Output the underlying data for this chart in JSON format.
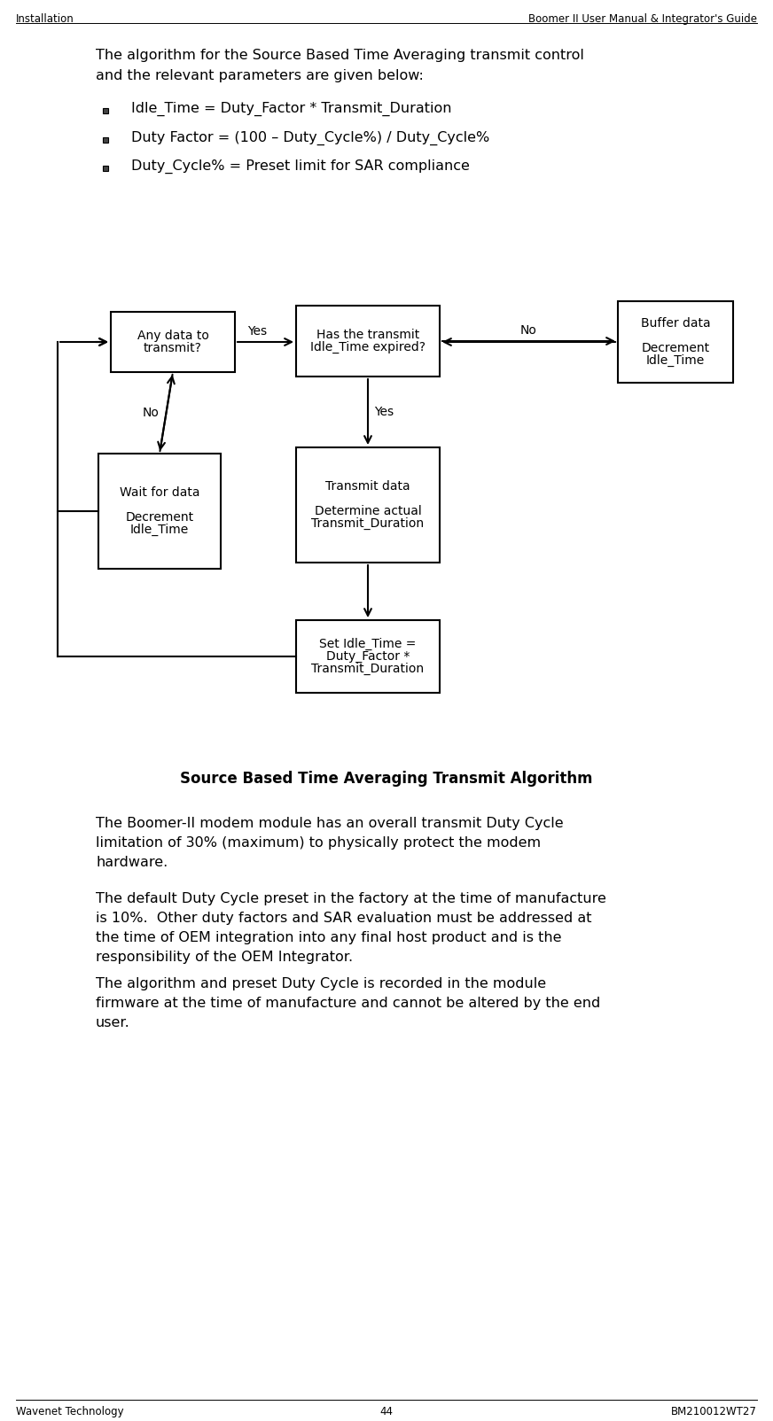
{
  "header_left": "Installation",
  "header_right": "Boomer II User Manual & Integrator's Guide",
  "footer_left": "Wavenet Technology",
  "footer_center": "44",
  "footer_right": "BM210012WT27",
  "intro_line1": "The algorithm for the Source Based Time Averaging transmit control",
  "intro_line2": "and the relevant parameters are given below:",
  "bullet1": "Idle_Time = Duty_Factor * Transmit_Duration",
  "bullet2": "Duty Factor = (100 – Duty_Cycle%) / Duty_Cycle%",
  "bullet3": "Duty_Cycle% = Preset limit for SAR compliance",
  "diagram_title": "Source Based Time Averaging Transmit Algorithm",
  "para1": [
    "The Boomer-II modem module has an overall transmit Duty Cycle",
    "limitation of 30% (maximum) to physically protect the modem",
    "hardware."
  ],
  "para2": [
    "The default Duty Cycle preset in the factory at the time of manufacture",
    "is 10%.  Other duty factors and SAR evaluation must be addressed at",
    "the time of OEM integration into any final host product and is the",
    "responsibility of the OEM Integrator."
  ],
  "para3": [
    "The algorithm and preset Duty Cycle is recorded in the module",
    "firmware at the time of manufacture and cannot be altered by the end",
    "user."
  ],
  "bg_color": "#ffffff",
  "text_color": "#000000",
  "fs_header": 8.5,
  "fs_body": 11.5,
  "fs_diagram": 10,
  "fs_title": 12
}
